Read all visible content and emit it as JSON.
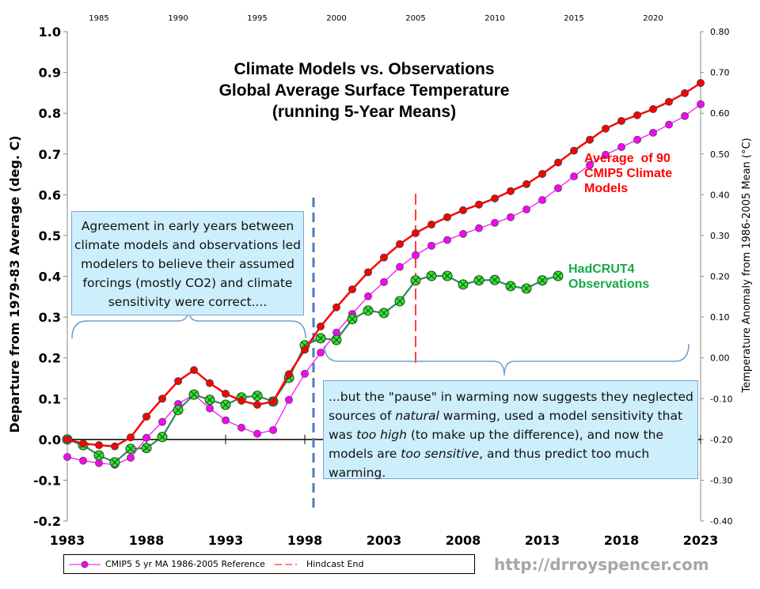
{
  "chart_data": {
    "type": "line",
    "title": [
      "Climate Models vs. Observations",
      "Global Average Surface Temperature",
      "(running 5-Year Means)"
    ],
    "ylabel": "Departure from 1979-83 Average (deg. C)",
    "ylabel_right": "Temperature Anomaly from 1986-2005 Mean (°C)",
    "xlim": [
      1983,
      2023
    ],
    "ylim": [
      -0.2,
      1.0
    ],
    "ylim_right": [
      -0.4,
      0.8
    ],
    "x_ticks": [
      "1983",
      "1988",
      "1993",
      "1998",
      "2003",
      "2008",
      "2013",
      "2018",
      "2023"
    ],
    "x_ticks_top": [
      "1985",
      "1990",
      "1995",
      "2000",
      "2005",
      "2010",
      "2015",
      "2020"
    ],
    "y_ticks": [
      "1.0",
      "0.9",
      "0.8",
      "0.7",
      "0.6",
      "0.5",
      "0.4",
      "0.3",
      "0.2",
      "0.1",
      "0.0",
      "-0.1",
      "-0.2"
    ],
    "y_ticks_right": [
      "0.80",
      "0.70",
      "0.60",
      "0.50",
      "0.40",
      "0.30",
      "0.20",
      "0.10",
      "0.00",
      "-0.10",
      "-0.20",
      "-0.30",
      "-0.40"
    ],
    "grid": false,
    "series": [
      {
        "name": "Average of 90 CMIP5 Climate Models",
        "color": "#ff0000",
        "x_start": 1983,
        "values": [
          0,
          -0.01,
          -0.014,
          -0.017,
          0.005,
          0.056,
          0.1,
          0.143,
          0.17,
          0.138,
          0.112,
          0.095,
          0.085,
          0.093,
          0.16,
          0.22,
          0.277,
          0.324,
          0.368,
          0.41,
          0.446,
          0.479,
          0.506,
          0.527,
          0.545,
          0.562,
          0.576,
          0.591,
          0.609,
          0.626,
          0.651,
          0.679,
          0.708,
          0.735,
          0.762,
          0.781,
          0.795,
          0.81,
          0.828,
          0.849,
          0.874
        ]
      },
      {
        "name": "CMIP5 5 yr MA 1986-2005 Reference",
        "color": "#ff00ff",
        "x_start": 1983,
        "values": [
          -0.043,
          -0.052,
          -0.058,
          -0.062,
          -0.045,
          0.004,
          0.043,
          0.087,
          0.11,
          0.076,
          0.047,
          0.029,
          0.014,
          0.023,
          0.097,
          0.161,
          0.213,
          0.262,
          0.308,
          0.351,
          0.386,
          0.423,
          0.452,
          0.475,
          0.489,
          0.504,
          0.518,
          0.531,
          0.545,
          0.564,
          0.587,
          0.616,
          0.645,
          0.673,
          0.698,
          0.717,
          0.735,
          0.752,
          0.772,
          0.793,
          0.822
        ]
      },
      {
        "name": "HadCRUT4 Observations",
        "color": "#2e8b57",
        "marker_color": "#22ee22",
        "x_start": 1983,
        "values": [
          0,
          -0.014,
          -0.039,
          -0.056,
          -0.023,
          -0.021,
          0.006,
          0.072,
          0.11,
          0.097,
          0.085,
          0.103,
          0.107,
          0.093,
          0.151,
          0.231,
          0.248,
          0.244,
          0.295,
          0.316,
          0.31,
          0.339,
          0.39,
          0.401,
          0.401,
          0.38,
          0.39,
          0.391,
          0.376,
          0.37,
          0.39,
          0.401
        ]
      }
    ],
    "hindcast_end_year": 2005,
    "legend": {
      "placement": "bottom-left",
      "entries": [
        "CMIP5 5 yr MA 1986-2005 Reference",
        "Hindcast End"
      ]
    },
    "annotations": {
      "models_label": [
        "Average  of 90",
        "CMIP5 Climate",
        "Models"
      ],
      "obs_label": [
        "HadCRUT4",
        "Observations"
      ],
      "box1": "Agreement in early years between climate models and observations led modelers to believe their assumed forcings (mostly CO2) and climate sensitivity were correct....",
      "box2": [
        {
          "t": "...but the \"pause\" in warming now suggests they neglected sources of ",
          "i": false
        },
        {
          "t": "natural",
          "i": true
        },
        {
          "t": " warming, used a model sensitivity that was ",
          "i": false
        },
        {
          "t": "too high",
          "i": true
        },
        {
          "t": " (to make up the difference), and now the models are ",
          "i": false
        },
        {
          "t": "too sensitive",
          "i": true
        },
        {
          "t": ", and thus predict too much warming.",
          "i": false
        }
      ]
    }
  },
  "watermark": "http://drroyspencer.com"
}
